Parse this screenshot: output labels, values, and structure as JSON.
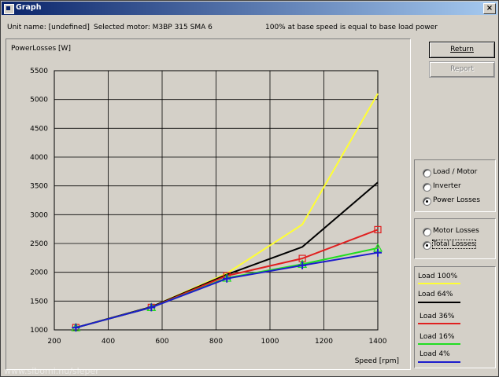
{
  "window": {
    "title": "Graph",
    "close_label": "×"
  },
  "info": {
    "unit_name": "Unit name: [undefined]",
    "selected_motor": "Selected motor: M3BP 315 SMA 6",
    "note": "100% at base speed is equal to base load power"
  },
  "buttons": {
    "return_label": "Return",
    "report_label": "Report"
  },
  "mode_group": {
    "options": [
      "Load / Motor",
      "Inverter",
      "Power Losses"
    ],
    "selected": "Power Losses"
  },
  "loss_group": {
    "options": [
      "Motor Losses",
      "Total Losses"
    ],
    "selected": "Total Losses"
  },
  "legend": [
    "Load 100%",
    "Load 64%",
    "Load 36%",
    "Load 16%",
    "Load 4%"
  ],
  "watermark": "www.sibomi.nu/sleper",
  "chart_data": {
    "type": "line",
    "ylabel": "PowerLosses [W]",
    "xlabel": "Speed [rpm]",
    "xlim": [
      200,
      1400
    ],
    "ylim": [
      1000,
      5500
    ],
    "xticks": [
      200,
      400,
      600,
      800,
      1000,
      1200,
      1400
    ],
    "yticks": [
      1000,
      1500,
      2000,
      2500,
      3000,
      3500,
      4000,
      4500,
      5000,
      5500
    ],
    "grid": true,
    "legend_position": "right",
    "x": [
      280,
      560,
      840,
      1120,
      1400
    ],
    "series": [
      {
        "name": "Load 100%",
        "color": "#ffff33",
        "values": [
          1040,
          1400,
          1980,
          2830,
          5100
        ],
        "marker": "none"
      },
      {
        "name": "Load 64%",
        "color": "#000000",
        "values": [
          1040,
          1400,
          1960,
          2440,
          3560
        ],
        "marker": "none"
      },
      {
        "name": "Load 36%",
        "color": "#e02020",
        "values": [
          1040,
          1390,
          1940,
          2240,
          2740
        ],
        "marker": "square"
      },
      {
        "name": "Load 16%",
        "color": "#22dd22",
        "values": [
          1040,
          1390,
          1900,
          2140,
          2420
        ],
        "marker": "triangle"
      },
      {
        "name": "Load 4%",
        "color": "#1c1ccc",
        "values": [
          1040,
          1390,
          1890,
          2120,
          2340
        ],
        "marker": "plus"
      }
    ]
  }
}
